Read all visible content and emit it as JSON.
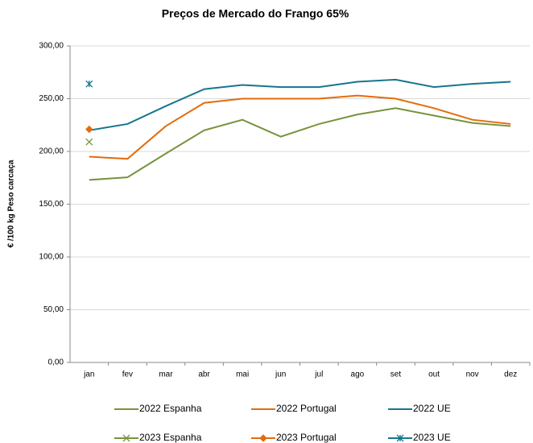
{
  "chart_data": {
    "type": "line",
    "title": "Preços de Mercado do Frango 65%",
    "y_label": "€ /100 kg Peso carcaça",
    "categories": [
      "jan",
      "fev",
      "mar",
      "abr",
      "mai",
      "jun",
      "jul",
      "ago",
      "set",
      "out",
      "nov",
      "dez"
    ],
    "ylim": [
      0,
      300
    ],
    "yticks": [
      {
        "value": 0,
        "label": "0,00"
      },
      {
        "value": 50,
        "label": "50,00"
      },
      {
        "value": 100,
        "label": "100,00"
      },
      {
        "value": 150,
        "label": "150,00"
      },
      {
        "value": 200,
        "label": "200,00"
      },
      {
        "value": 250,
        "label": "250,00"
      },
      {
        "value": 300,
        "label": "300,00"
      }
    ],
    "grid": true,
    "series": [
      {
        "name": "2022 Espanha",
        "color": "#77933c",
        "values": [
          173,
          175.5,
          198,
          220,
          230,
          214,
          226,
          235,
          241,
          234,
          227,
          224
        ]
      },
      {
        "name": "2022 Portugal",
        "color": "#e46c0a",
        "values": [
          195,
          193,
          224,
          246,
          250,
          250,
          250,
          253,
          250,
          241,
          230,
          226
        ]
      },
      {
        "name": "2022 UE",
        "color": "#17758f",
        "values": [
          220,
          226,
          243,
          259,
          263,
          261,
          261,
          266,
          268,
          261,
          264,
          266
        ]
      },
      {
        "name": "2023 Espanha",
        "color": "#77933c",
        "marker": "x",
        "values": [
          209,
          null,
          null,
          null,
          null,
          null,
          null,
          null,
          null,
          null,
          null,
          null
        ]
      },
      {
        "name": "2023 Portugal",
        "color": "#e46c0a",
        "marker": "diamond",
        "values": [
          221,
          null,
          null,
          null,
          null,
          null,
          null,
          null,
          null,
          null,
          null,
          null
        ]
      },
      {
        "name": "2023 UE",
        "color": "#17758f",
        "marker": "asterisk",
        "values": [
          264,
          null,
          null,
          null,
          null,
          null,
          null,
          null,
          null,
          null,
          null,
          null
        ]
      }
    ]
  }
}
